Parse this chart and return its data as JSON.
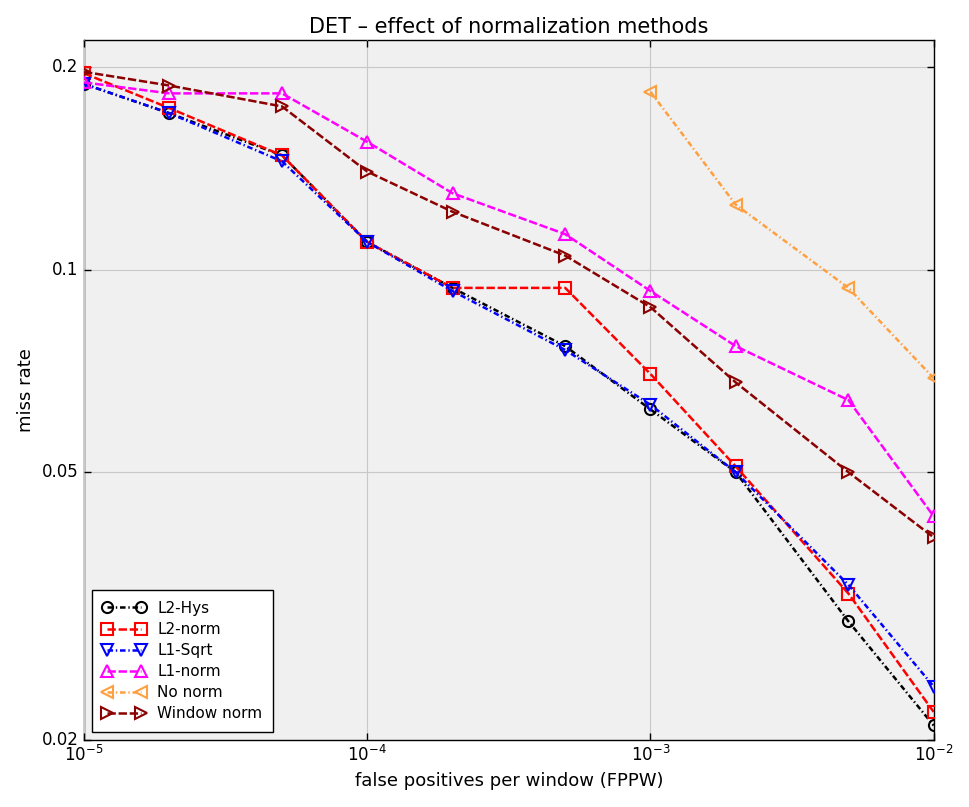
{
  "title": "DET – effect of normalization methods",
  "xlabel": "false positives per window (FPPW)",
  "ylabel": "miss rate",
  "xlim": [
    1e-05,
    0.01
  ],
  "ylim": [
    0.02,
    0.22
  ],
  "lines": {
    "L2-Hys": {
      "color": "#000000",
      "linestyle": "-.",
      "marker": "o",
      "x": [
        1e-05,
        2e-05,
        5e-05,
        0.0001,
        0.0002,
        0.0005,
        0.001,
        0.002,
        0.005,
        0.01
      ],
      "y": [
        0.189,
        0.171,
        0.148,
        0.11,
        0.094,
        0.077,
        0.062,
        0.05,
        0.03,
        0.021
      ]
    },
    "L2-norm": {
      "color": "#ff0000",
      "linestyle": "--",
      "marker": "s",
      "x": [
        1e-05,
        2e-05,
        5e-05,
        0.0001,
        0.0002,
        0.0005,
        0.001,
        0.002,
        0.005,
        0.01
      ],
      "y": [
        0.196,
        0.174,
        0.148,
        0.11,
        0.094,
        0.094,
        0.07,
        0.051,
        0.033,
        0.022
      ]
    },
    "L1-Sqrt": {
      "color": "#0000ff",
      "linestyle": "-.",
      "marker": "v",
      "x": [
        1e-05,
        2e-05,
        5e-05,
        0.0001,
        0.0002,
        0.0005,
        0.001,
        0.002,
        0.005,
        0.01
      ],
      "y": [
        0.189,
        0.171,
        0.145,
        0.11,
        0.093,
        0.076,
        0.063,
        0.05,
        0.034,
        0.024
      ]
    },
    "L1-norm": {
      "color": "#ff00ff",
      "linestyle": "--",
      "marker": "^",
      "x": [
        1e-05,
        2e-05,
        5e-05,
        0.0001,
        0.0002,
        0.0005,
        0.001,
        0.002,
        0.005,
        0.01
      ],
      "y": [
        0.19,
        0.183,
        0.183,
        0.155,
        0.13,
        0.113,
        0.093,
        0.077,
        0.064,
        0.043
      ]
    },
    "No norm": {
      "color": "#ffa040",
      "linestyle": "-.",
      "marker": "<",
      "x": [
        0.001,
        0.002,
        0.005,
        0.01
      ],
      "y": [
        0.184,
        0.125,
        0.094,
        0.069
      ]
    },
    "Window norm": {
      "color": "#8b0000",
      "linestyle": "--",
      "marker": ">",
      "x": [
        1e-05,
        2e-05,
        5e-05,
        0.0001,
        0.0002,
        0.0005,
        0.001,
        0.002,
        0.005,
        0.01
      ],
      "y": [
        0.197,
        0.188,
        0.175,
        0.14,
        0.122,
        0.105,
        0.088,
        0.068,
        0.05,
        0.04
      ]
    }
  },
  "grid_color": "#c8c8c8",
  "background_color": "#f2f2f2",
  "axes_background": "#f2f2f2",
  "legend_loc": "lower left",
  "title_fontsize": 15,
  "label_fontsize": 13,
  "tick_fontsize": 12,
  "linewidth": 1.8,
  "markersize": 8
}
